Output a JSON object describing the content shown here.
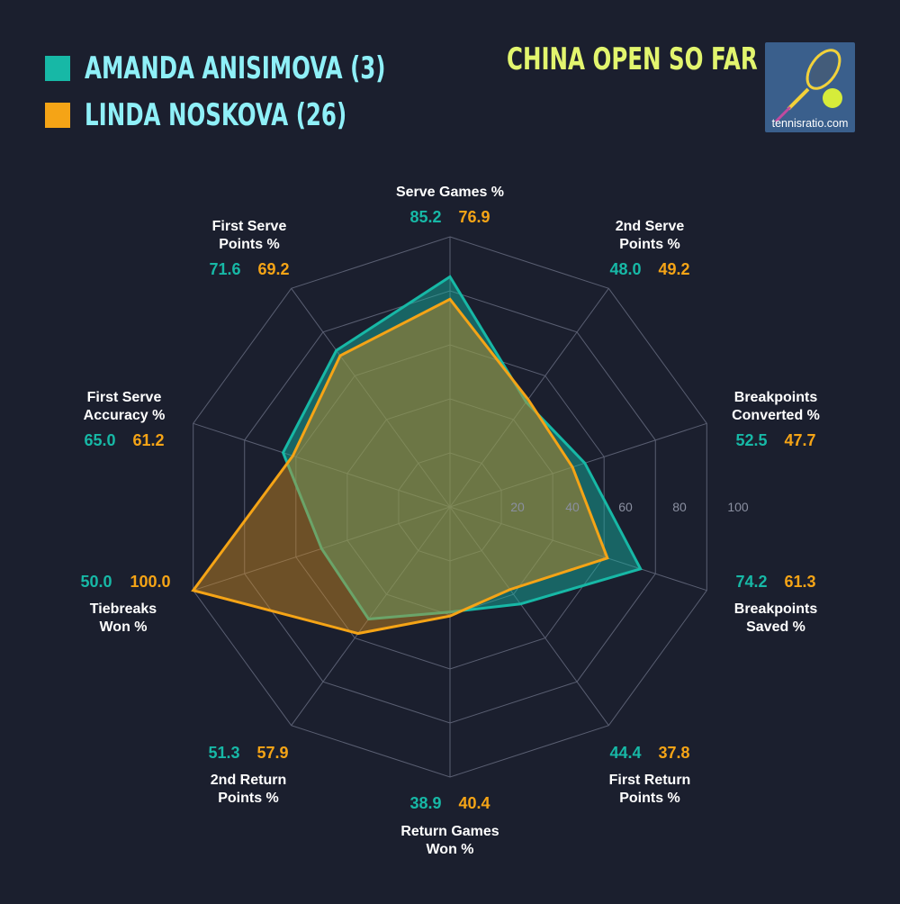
{
  "title": "CHINA OPEN SO FAR",
  "logo_text": "tennisratio.com",
  "chart_data": {
    "type": "radar",
    "rlim": [
      0,
      100
    ],
    "ticks": [
      "20",
      "40",
      "60",
      "80",
      "100"
    ],
    "axes": [
      {
        "lines": [
          "Serve Games %"
        ]
      },
      {
        "lines": [
          "2nd Serve",
          "Points %"
        ]
      },
      {
        "lines": [
          "Breakpoints",
          "Converted %"
        ]
      },
      {
        "lines": [
          "Breakpoints",
          "Saved %"
        ]
      },
      {
        "lines": [
          "First Return",
          "Points %"
        ]
      },
      {
        "lines": [
          "Return Games",
          "Won %"
        ]
      },
      {
        "lines": [
          "2nd Return",
          "Points %"
        ]
      },
      {
        "lines": [
          "Tiebreaks",
          "Won %"
        ]
      },
      {
        "lines": [
          "First Serve",
          "Accuracy %"
        ]
      },
      {
        "lines": [
          "First Serve",
          "Points %"
        ]
      }
    ],
    "series": [
      {
        "name": "AMANDA ANISIMOVA (3)",
        "color": "#17b8a6",
        "values": [
          85.2,
          48.0,
          52.5,
          74.2,
          44.4,
          38.9,
          51.3,
          50.0,
          65.0,
          71.6
        ],
        "labels": [
          "85.2",
          "48.0",
          "52.5",
          "74.2",
          "44.4",
          "38.9",
          "51.3",
          "50.0",
          "65.0",
          "71.6"
        ]
      },
      {
        "name": "LINDA NOSKOVA (26)",
        "color": "#f5a416",
        "values": [
          76.9,
          49.2,
          47.7,
          61.3,
          37.8,
          40.4,
          57.9,
          100.0,
          61.2,
          69.2
        ],
        "labels": [
          "76.9",
          "49.2",
          "47.7",
          "61.3",
          "37.8",
          "40.4",
          "57.9",
          "100.0",
          "61.2",
          "69.2"
        ]
      }
    ]
  }
}
